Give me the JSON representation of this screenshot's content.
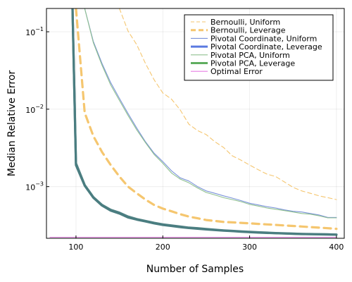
{
  "chart_data": {
    "type": "line",
    "xlabel": "Number of Samples",
    "ylabel": "Median Relative Error",
    "xlim": [
      66,
      409
    ],
    "ylim": [
      0.000215,
      0.2
    ],
    "yscale": "log",
    "xticks": [
      100,
      200,
      300,
      400
    ],
    "xtick_labels": [
      "100",
      "200",
      "300",
      "400"
    ],
    "yticks": [
      0.001,
      0.01,
      0.1
    ],
    "ytick_base": "10",
    "ytick_exponents": [
      "−3",
      "−2",
      "−1"
    ],
    "grid": true,
    "legend_position": "top-right",
    "series": [
      {
        "name": "Bernoulli, Uniform",
        "color": "#f5c66f",
        "style": "dashed",
        "weight": "thin",
        "x": [
          150,
          160,
          170,
          180,
          190,
          200,
          210,
          220,
          230,
          240,
          250,
          260,
          270,
          280,
          290,
          300,
          310,
          320,
          330,
          340,
          350,
          360,
          370,
          380,
          390,
          400
        ],
        "y": [
          0.2,
          0.102,
          0.068,
          0.039,
          0.024,
          0.0162,
          0.0135,
          0.0098,
          0.0064,
          0.0053,
          0.0047,
          0.0038,
          0.0032,
          0.0025,
          0.0022,
          0.0019,
          0.00165,
          0.00145,
          0.00135,
          0.00115,
          0.00098,
          0.00088,
          0.00082,
          0.00076,
          0.00072,
          0.00068
        ]
      },
      {
        "name": "Bernoulli, Leverage",
        "color": "#f5c66f",
        "style": "dashed",
        "weight": "thick",
        "x": [
          100,
          110,
          120,
          130,
          140,
          150,
          160,
          170,
          180,
          190,
          200,
          210,
          220,
          230,
          240,
          250,
          260,
          270,
          280,
          290,
          300,
          310,
          320,
          330,
          340,
          350,
          360,
          370,
          380,
          390,
          400
        ],
        "y": [
          0.2,
          0.009,
          0.0045,
          0.0028,
          0.0019,
          0.00135,
          0.001,
          0.00082,
          0.00068,
          0.00058,
          0.00052,
          0.00048,
          0.00044,
          0.00041,
          0.00039,
          0.00037,
          0.00036,
          0.00035,
          0.000345,
          0.00034,
          0.000335,
          0.00033,
          0.000325,
          0.00032,
          0.000315,
          0.00031,
          0.000305,
          0.0003,
          0.000295,
          0.00029,
          0.000285
        ]
      },
      {
        "name": "Pivotal Coordinate, Uniform",
        "color": "#7b93d9",
        "style": "solid",
        "weight": "thin",
        "x": [
          110,
          120,
          130,
          140,
          150,
          160,
          170,
          180,
          190,
          200,
          210,
          220,
          230,
          240,
          250,
          260,
          270,
          280,
          290,
          300,
          310,
          320,
          330,
          340,
          350,
          360,
          370,
          380,
          390,
          400
        ],
        "y": [
          0.2,
          0.075,
          0.039,
          0.022,
          0.0138,
          0.0088,
          0.0057,
          0.0038,
          0.0027,
          0.0021,
          0.0016,
          0.0013,
          0.00118,
          0.001,
          0.00088,
          0.00082,
          0.00076,
          0.00071,
          0.00066,
          0.00061,
          0.00058,
          0.00055,
          0.00053,
          0.0005,
          0.00048,
          0.00047,
          0.00045,
          0.00043,
          0.0004,
          0.0004
        ]
      },
      {
        "name": "Pivotal Coordinate, Leverage",
        "color": "#5b7ae0",
        "style": "solid",
        "weight": "thick",
        "x": [
          96,
          100,
          110,
          120,
          130,
          140,
          150,
          160,
          170,
          180,
          190,
          200,
          210,
          220,
          230,
          240,
          250,
          260,
          270,
          280,
          290,
          300,
          310,
          320,
          330,
          340,
          350,
          360,
          370,
          380,
          390,
          400
        ],
        "y": [
          0.2,
          0.002,
          0.00105,
          0.00073,
          0.00058,
          0.0005,
          0.00046,
          0.00041,
          0.00038,
          0.00036,
          0.00034,
          0.000325,
          0.000315,
          0.000305,
          0.000295,
          0.00029,
          0.000283,
          0.000277,
          0.000272,
          0.000268,
          0.000264,
          0.00026,
          0.000257,
          0.000254,
          0.000251,
          0.000249,
          0.000247,
          0.000245,
          0.000244,
          0.000243,
          0.000242,
          0.00024
        ]
      },
      {
        "name": "Pivotal PCA, Uniform",
        "color": "#8fc08f",
        "style": "solid",
        "weight": "thin",
        "x": [
          110,
          120,
          130,
          140,
          150,
          160,
          170,
          180,
          190,
          200,
          210,
          220,
          230,
          240,
          250,
          260,
          270,
          280,
          290,
          300,
          310,
          320,
          330,
          340,
          350,
          360,
          370,
          380,
          390,
          400
        ],
        "y": [
          0.2,
          0.072,
          0.037,
          0.0205,
          0.013,
          0.0083,
          0.0054,
          0.0037,
          0.0026,
          0.002,
          0.0015,
          0.00125,
          0.00112,
          0.00096,
          0.00084,
          0.00078,
          0.00072,
          0.00068,
          0.00064,
          0.00059,
          0.00056,
          0.00053,
          0.00051,
          0.00049,
          0.00047,
          0.00045,
          0.00044,
          0.00042,
          0.000395,
          0.000395
        ]
      },
      {
        "name": "Pivotal PCA, Leverage",
        "color": "#5fae5f",
        "style": "solid",
        "weight": "thick",
        "x": [
          96,
          100,
          110,
          120,
          130,
          140,
          150,
          160,
          170,
          180,
          190,
          200,
          210,
          220,
          230,
          240,
          250,
          260,
          270,
          280,
          290,
          300,
          310,
          320,
          330,
          340,
          350,
          360,
          370,
          380,
          390,
          400
        ],
        "y": [
          0.2,
          0.0019,
          0.00103,
          0.00072,
          0.00057,
          0.00049,
          0.00045,
          0.0004,
          0.000375,
          0.000355,
          0.000335,
          0.00032,
          0.00031,
          0.0003,
          0.000292,
          0.000286,
          0.00028,
          0.000275,
          0.00027,
          0.000266,
          0.000262,
          0.000258,
          0.000255,
          0.000252,
          0.00025,
          0.000248,
          0.000246,
          0.000244,
          0.000243,
          0.000242,
          0.000241,
          0.00024
        ]
      },
      {
        "name": "Optimal Error",
        "color": "#e77fe3",
        "style": "solid",
        "weight": "thin",
        "x": [
          70,
          400
        ],
        "y": [
          0.000222,
          0.000222
        ]
      }
    ],
    "overlay": {
      "note": "thick leverage curves for Pivotal Coordinate and Pivotal PCA overlap and render as a teal line",
      "color": "#4a7d80"
    }
  }
}
